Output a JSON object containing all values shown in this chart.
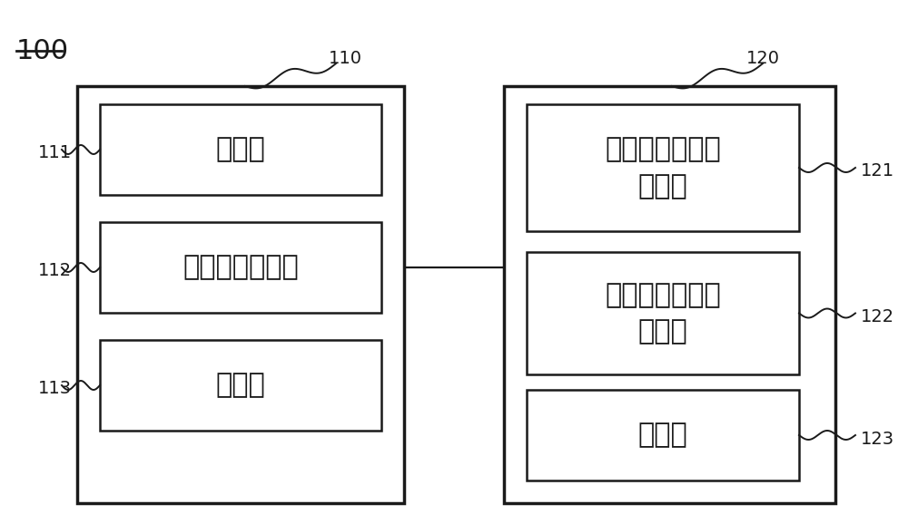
{
  "bg_color": "#ffffff",
  "line_color": "#1a1a1a",
  "label_100": "100",
  "label_110": "110",
  "label_120": "120",
  "label_111": "111",
  "label_112": "112",
  "label_113": "113",
  "label_121": "121",
  "label_122": "122",
  "label_123": "123",
  "box111_text": "获取部",
  "box112_text": "基准高度决定部",
  "box113_text": "过滤部",
  "box121_text": "二维道路面向量\n生成部",
  "box122_text": "三维道路面光栅\n生成部",
  "box123_text": "结合部",
  "font_size_label": 14,
  "font_size_box_small": 22,
  "font_size_box_large": 22,
  "font_size_100": 22,
  "lw_outer": 2.5,
  "lw_inner": 1.8,
  "lw_conn": 1.6,
  "lw_squiggle": 1.4
}
